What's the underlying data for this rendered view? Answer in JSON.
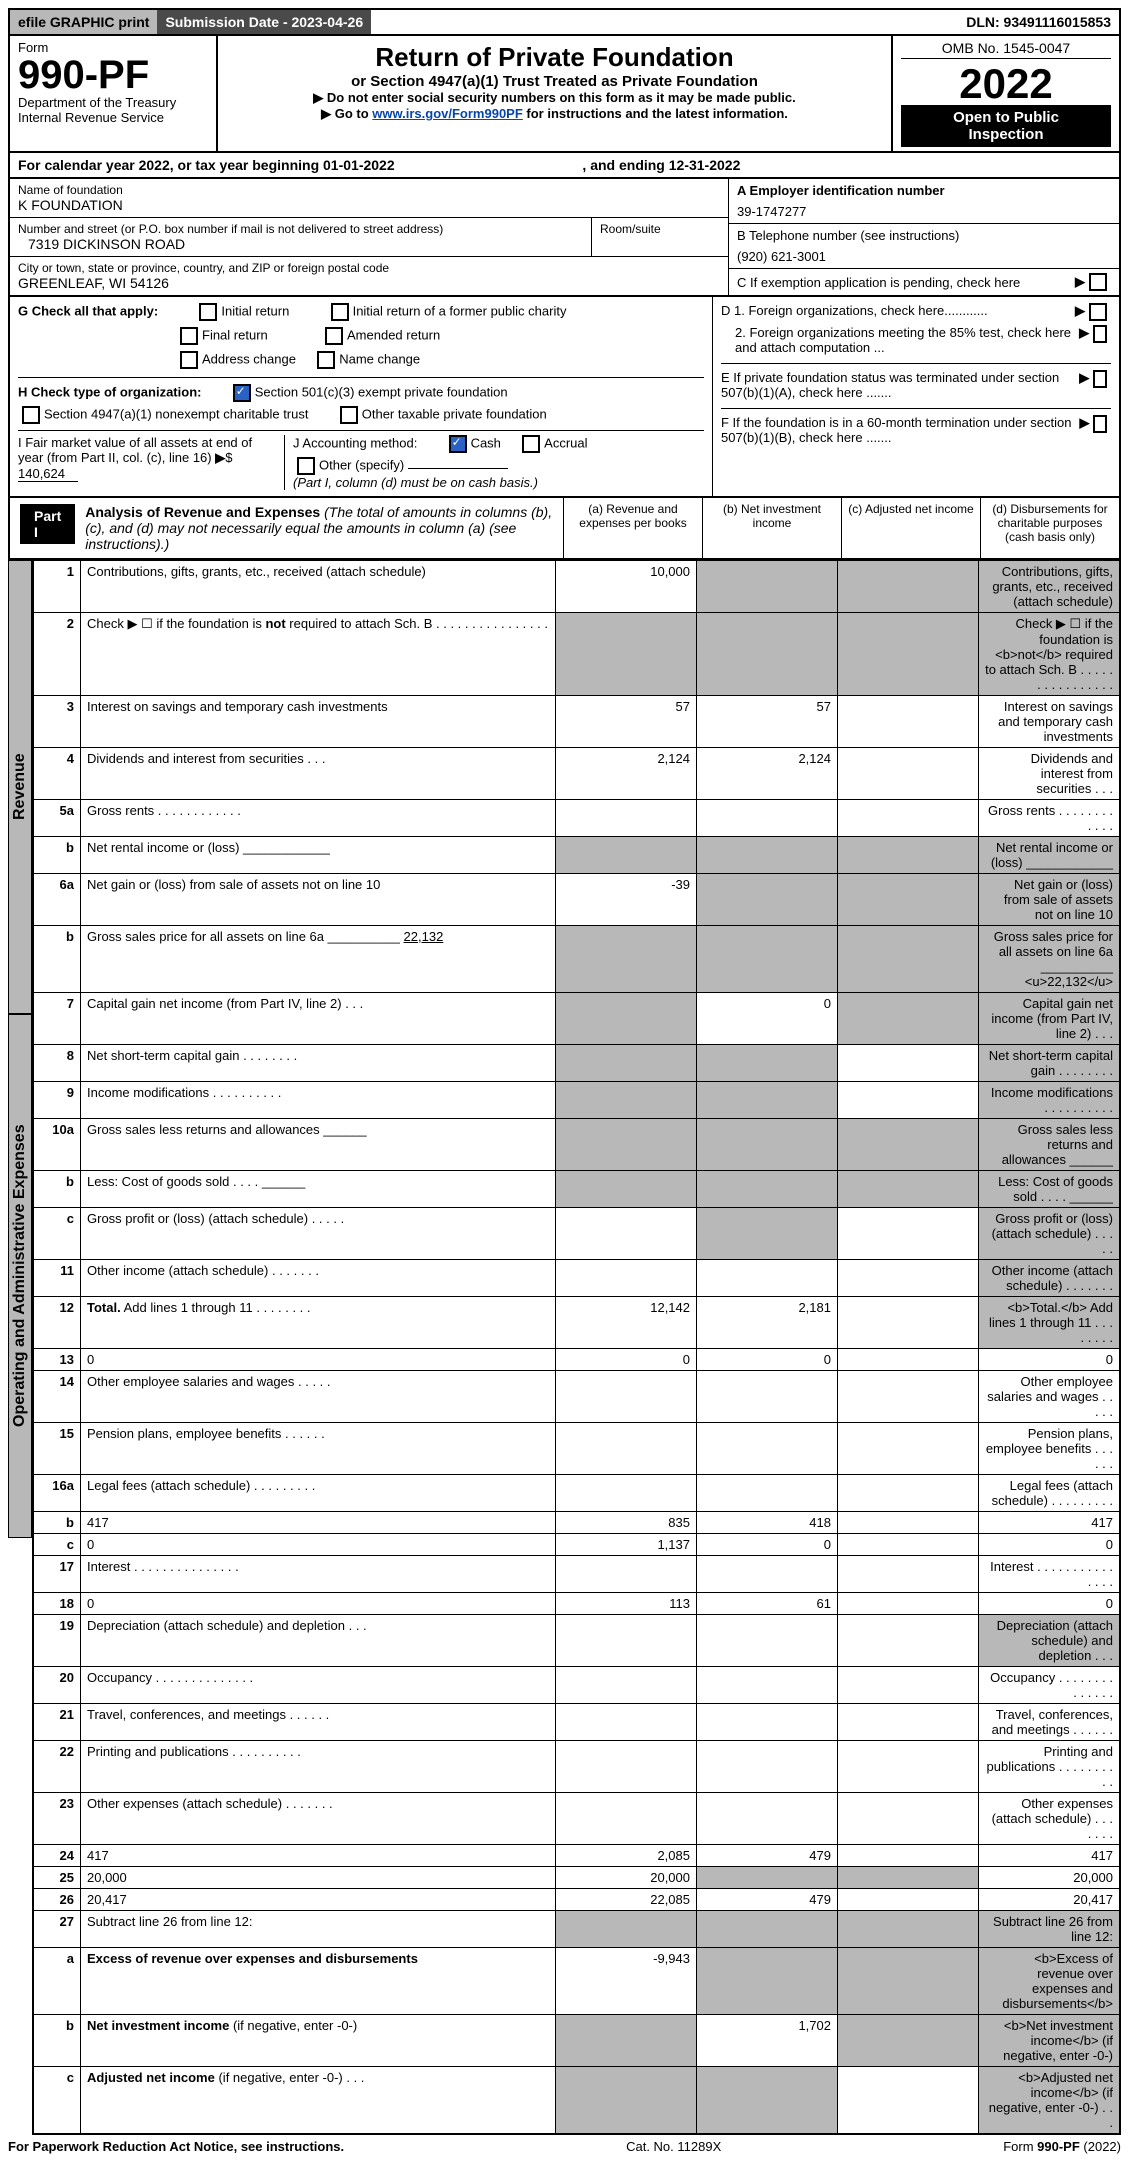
{
  "topbar": {
    "efile": "efile GRAPHIC print",
    "submission_label": "Submission Date - 2023-04-26",
    "dln": "DLN: 93491116015853"
  },
  "header": {
    "form_word": "Form",
    "form_number": "990-PF",
    "dept": "Department of the Treasury",
    "irs": "Internal Revenue Service",
    "title": "Return of Private Foundation",
    "subtitle": "or Section 4947(a)(1) Trust Treated as Private Foundation",
    "instr1": "▶ Do not enter social security numbers on this form as it may be made public.",
    "instr2_pre": "▶ Go to ",
    "instr2_link": "www.irs.gov/Form990PF",
    "instr2_post": " for instructions and the latest information.",
    "omb": "OMB No. 1545-0047",
    "year": "2022",
    "open1": "Open to Public",
    "open2": "Inspection"
  },
  "calyear": {
    "text": "For calendar year 2022, or tax year beginning 01-01-2022",
    "ending": ", and ending 12-31-2022"
  },
  "ident": {
    "name_label": "Name of foundation",
    "name": "K FOUNDATION",
    "street_label": "Number and street (or P.O. box number if mail is not delivered to street address)",
    "street": "7319 DICKINSON ROAD",
    "room_label": "Room/suite",
    "city_label": "City or town, state or province, country, and ZIP or foreign postal code",
    "city": "GREENLEAF, WI  54126",
    "A_label": "A Employer identification number",
    "A_val": "39-1747277",
    "B_label": "B Telephone number (see instructions)",
    "B_val": "(920) 621-3001",
    "C_label": "C If exemption application is pending, check here",
    "D1": "D 1. Foreign organizations, check here............",
    "D2": "2. Foreign organizations meeting the 85% test, check here and attach computation ...",
    "E": "E  If private foundation status was terminated under section 507(b)(1)(A), check here .......",
    "F": "F  If the foundation is in a 60-month termination under section 507(b)(1)(B), check here ......."
  },
  "G": {
    "label": "G Check all that apply:",
    "opts": [
      "Initial return",
      "Initial return of a former public charity",
      "Final return",
      "Amended return",
      "Address change",
      "Name change"
    ],
    "H_label": "H Check type of organization:",
    "H1": "Section 501(c)(3) exempt private foundation",
    "H2": "Section 4947(a)(1) nonexempt charitable trust",
    "H3": "Other taxable private foundation",
    "I_label": "I Fair market value of all assets at end of year (from Part II, col. (c), line 16)",
    "I_val": "140,624",
    "J_label": "J Accounting method:",
    "J_cash": "Cash",
    "J_accrual": "Accrual",
    "J_other": "Other (specify)",
    "J_note": "(Part I, column (d) must be on cash basis.)"
  },
  "part1": {
    "bar": "Part I",
    "heading": "Analysis of Revenue and Expenses",
    "heading_note": "(The total of amounts in columns (b), (c), and (d) may not necessarily equal the amounts in column (a) (see instructions).)",
    "col_a": "(a)   Revenue and expenses per books",
    "col_b": "(b)   Net investment income",
    "col_c": "(c)   Adjusted net income",
    "col_d": "(d)  Disbursements for charitable purposes (cash basis only)"
  },
  "side": {
    "revenue": "Revenue",
    "expenses": "Operating and Administrative Expenses"
  },
  "rows": [
    {
      "n": "1",
      "d": "Contributions, gifts, grants, etc., received (attach schedule)",
      "a": "10,000",
      "grey": [
        "b",
        "c",
        "d"
      ]
    },
    {
      "n": "2",
      "d": "Check ▶ ☐ if the foundation is <b>not</b> required to attach Sch. B   .  .  .  .  .  .  .  .  .  .  .  .  .  .  .  .",
      "grey": [
        "a",
        "b",
        "c",
        "d"
      ]
    },
    {
      "n": "3",
      "d": "Interest on savings and temporary cash investments",
      "a": "57",
      "b": "57"
    },
    {
      "n": "4",
      "d": "Dividends and interest from securities   .  .  .",
      "a": "2,124",
      "b": "2,124"
    },
    {
      "n": "5a",
      "d": "Gross rents   .  .  .  .  .  .  .  .  .  .  .  ."
    },
    {
      "n": "b",
      "d": "Net rental income or (loss) ____________",
      "grey": [
        "a",
        "b",
        "c",
        "d"
      ]
    },
    {
      "n": "6a",
      "d": "Net gain or (loss) from sale of assets not on line 10",
      "a": "-39",
      "grey": [
        "b",
        "c",
        "d"
      ]
    },
    {
      "n": "b",
      "d": "Gross sales price for all assets on line 6a __________ <u>22,132</u>",
      "grey": [
        "a",
        "b",
        "c",
        "d"
      ]
    },
    {
      "n": "7",
      "d": "Capital gain net income (from Part IV, line 2)   .  .  .",
      "b": "0",
      "grey": [
        "a",
        "c",
        "d"
      ]
    },
    {
      "n": "8",
      "d": "Net short-term capital gain   .  .  .  .  .  .  .  .",
      "grey": [
        "a",
        "b",
        "d"
      ]
    },
    {
      "n": "9",
      "d": "Income modifications   .  .  .  .  .  .  .  .  .  .",
      "grey": [
        "a",
        "b",
        "d"
      ]
    },
    {
      "n": "10a",
      "d": "Gross sales less returns and allowances  ______",
      "grey": [
        "a",
        "b",
        "c",
        "d"
      ]
    },
    {
      "n": "b",
      "d": "Less: Cost of goods sold   .  .  .  .   ______",
      "grey": [
        "a",
        "b",
        "c",
        "d"
      ]
    },
    {
      "n": "c",
      "d": "Gross profit or (loss) (attach schedule)   .  .  .  .  .",
      "grey": [
        "b",
        "d"
      ]
    },
    {
      "n": "11",
      "d": "Other income (attach schedule)   .  .  .  .  .  .  .",
      "grey": [
        "d"
      ]
    },
    {
      "n": "12",
      "d": "<b>Total.</b> Add lines 1 through 11   .  .  .  .  .  .  .  .",
      "a": "12,142",
      "b": "2,181",
      "grey": [
        "d"
      ]
    },
    {
      "n": "13",
      "d": "0",
      "a": "0",
      "b": "0"
    },
    {
      "n": "14",
      "d": "Other employee salaries and wages   .  .  .  .  ."
    },
    {
      "n": "15",
      "d": "Pension plans, employee benefits   .  .  .  .  .  ."
    },
    {
      "n": "16a",
      "d": "Legal fees (attach schedule)  .  .  .  .  .  .  .  .  ."
    },
    {
      "n": "b",
      "d": "417",
      "a": "835",
      "b": "418"
    },
    {
      "n": "c",
      "d": "0",
      "a": "1,137",
      "b": "0"
    },
    {
      "n": "17",
      "d": "Interest  .  .  .  .  .  .  .  .  .  .  .  .  .  .  ."
    },
    {
      "n": "18",
      "d": "0",
      "a": "113",
      "b": "61"
    },
    {
      "n": "19",
      "d": "Depreciation (attach schedule) and depletion   .  .  .",
      "grey": [
        "d"
      ]
    },
    {
      "n": "20",
      "d": "Occupancy  .  .  .  .  .  .  .  .  .  .  .  .  .  ."
    },
    {
      "n": "21",
      "d": "Travel, conferences, and meetings  .  .  .  .  .  ."
    },
    {
      "n": "22",
      "d": "Printing and publications  .  .  .  .  .  .  .  .  .  ."
    },
    {
      "n": "23",
      "d": "Other expenses (attach schedule)  .  .  .  .  .  .  ."
    },
    {
      "n": "24",
      "d": "417",
      "a": "2,085",
      "b": "479"
    },
    {
      "n": "25",
      "d": "20,000",
      "a": "20,000",
      "grey": [
        "b",
        "c"
      ]
    },
    {
      "n": "26",
      "d": "20,417",
      "a": "22,085",
      "b": "479"
    },
    {
      "n": "27",
      "d": "Subtract line 26 from line 12:",
      "grey": [
        "a",
        "b",
        "c",
        "d"
      ]
    },
    {
      "n": "a",
      "d": "<b>Excess of revenue over expenses and disbursements</b>",
      "a": "-9,943",
      "grey": [
        "b",
        "c",
        "d"
      ]
    },
    {
      "n": "b",
      "d": "<b>Net investment income</b> (if negative, enter -0-)",
      "b": "1,702",
      "grey": [
        "a",
        "c",
        "d"
      ]
    },
    {
      "n": "c",
      "d": "<b>Adjusted net income</b> (if negative, enter -0-)   .  .  .",
      "grey": [
        "a",
        "b",
        "d"
      ]
    }
  ],
  "footer": {
    "left": "For Paperwork Reduction Act Notice, see instructions.",
    "mid": "Cat. No. 11289X",
    "right": "Form 990-PF (2022)"
  },
  "colors": {
    "darkgrey": "#4a4a4a",
    "lightgrey": "#b8b8b8",
    "link": "#0645ad",
    "checkmark": "#2962c4"
  }
}
